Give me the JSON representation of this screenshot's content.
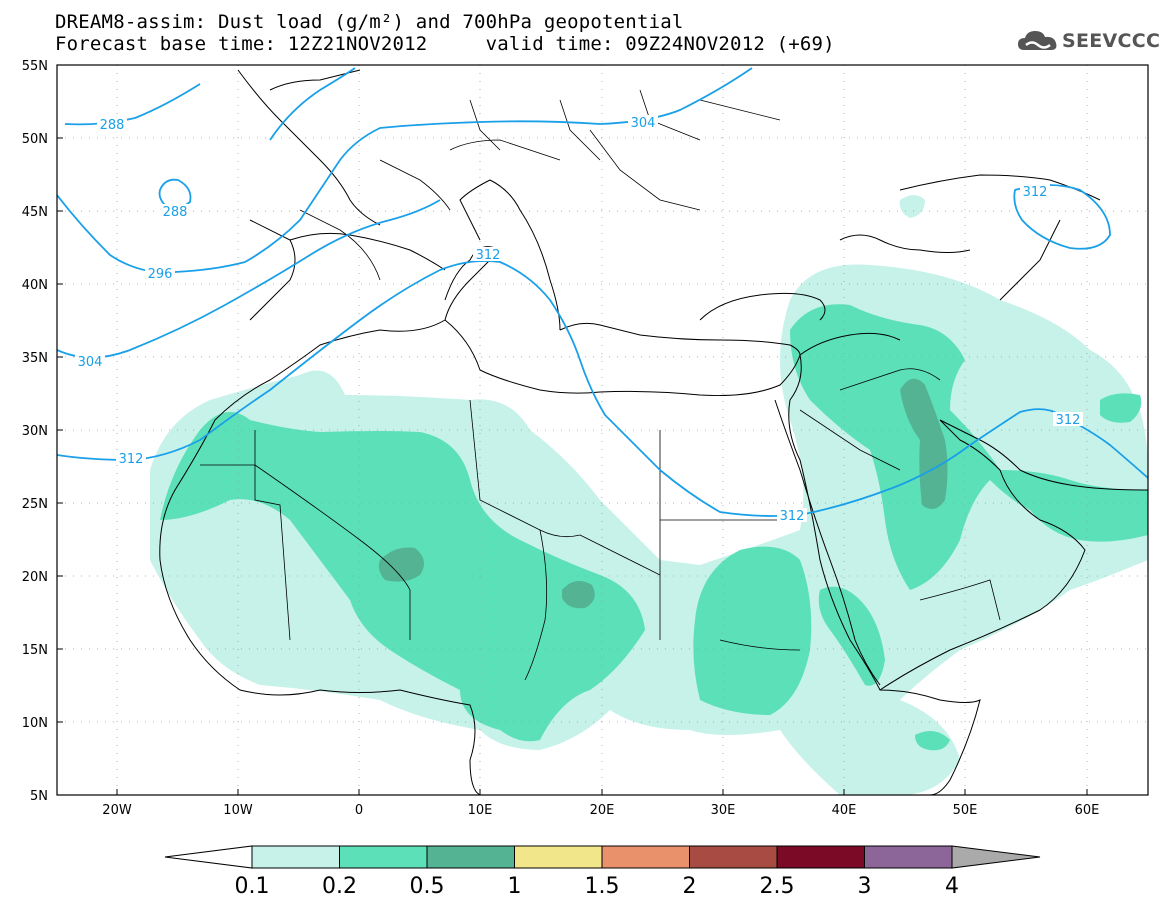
{
  "title": {
    "line1": "DREAM8-assim: Dust load (g/m²) and 700hPa geopotential",
    "line2": "Forecast base time: 12Z21NOV2012     valid time: 09Z24NOV2012 (+69)"
  },
  "logo": {
    "text": "SEEVCCC",
    "icon": "cloud-icon"
  },
  "map": {
    "lon_ticks": [
      "20W",
      "10W",
      "0",
      "10E",
      "20E",
      "30E",
      "40E",
      "50E",
      "60E"
    ],
    "lat_ticks": [
      "55N",
      "50N",
      "45N",
      "40N",
      "35N",
      "30N",
      "25N",
      "20N",
      "15N",
      "10N",
      "5N"
    ],
    "contour_labels": [
      "288",
      "288",
      "296",
      "304",
      "304",
      "312",
      "312",
      "312",
      "312",
      "312"
    ]
  },
  "colorbar": {
    "levels": [
      "0.1",
      "0.2",
      "0.5",
      "1",
      "1.5",
      "2",
      "2.5",
      "3",
      "4"
    ],
    "colors": [
      "#c6f2ea",
      "#5ce0b8",
      "#53b392",
      "#f2e68a",
      "#e8916a",
      "#a84b43",
      "#7a0a26",
      "#8c6699"
    ],
    "under_color": "#ffffff",
    "over_color": "#aaaaaa"
  },
  "colors": {
    "contour": "#1aa0e8",
    "dust_light": "#c6f2ea",
    "dust_mid": "#5ce0b8",
    "dust_dark": "#53b392"
  }
}
